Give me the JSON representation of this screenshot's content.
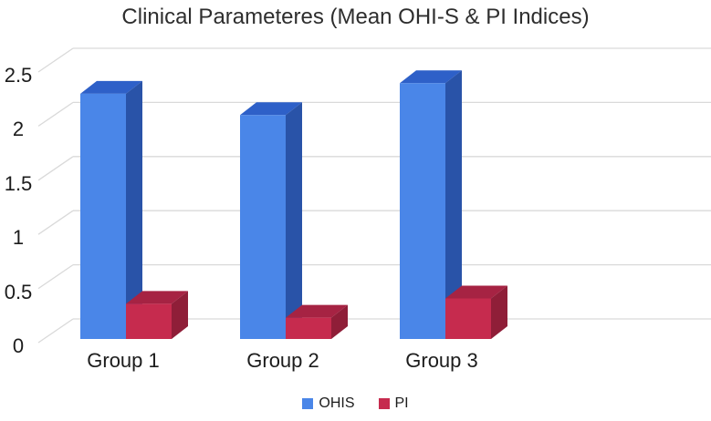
{
  "chart_data": {
    "type": "bar",
    "subtype": "3d-clustered-column",
    "title": "Clinical Parameteres (Mean OHI-S & PI Indices)",
    "categories": [
      "Group 1",
      "Group 2",
      "Group 3"
    ],
    "series": [
      {
        "name": "OHIS",
        "values": [
          2.3,
          2.1,
          2.4
        ],
        "color": "#4a86e8",
        "color_top": "#2e60c8",
        "color_side": "#2953a8"
      },
      {
        "name": "PI",
        "values": [
          0.33,
          0.2,
          0.38
        ],
        "color": "#c62b4e",
        "color_top": "#a62343",
        "color_side": "#8f1e38"
      }
    ],
    "xlabel": "",
    "ylabel": "",
    "y_axis": {
      "min": 0,
      "max": 2.5,
      "ticks": [
        "0",
        "0.5",
        "1",
        "1.5",
        "2",
        "2.5"
      ],
      "tick_values": [
        0,
        0.5,
        1,
        1.5,
        2,
        2.5
      ]
    },
    "grid": true,
    "gridline_color": "#d9d9d9",
    "legend_position": "bottom",
    "background": "#ffffff",
    "text_color": "#1c1c1c"
  }
}
